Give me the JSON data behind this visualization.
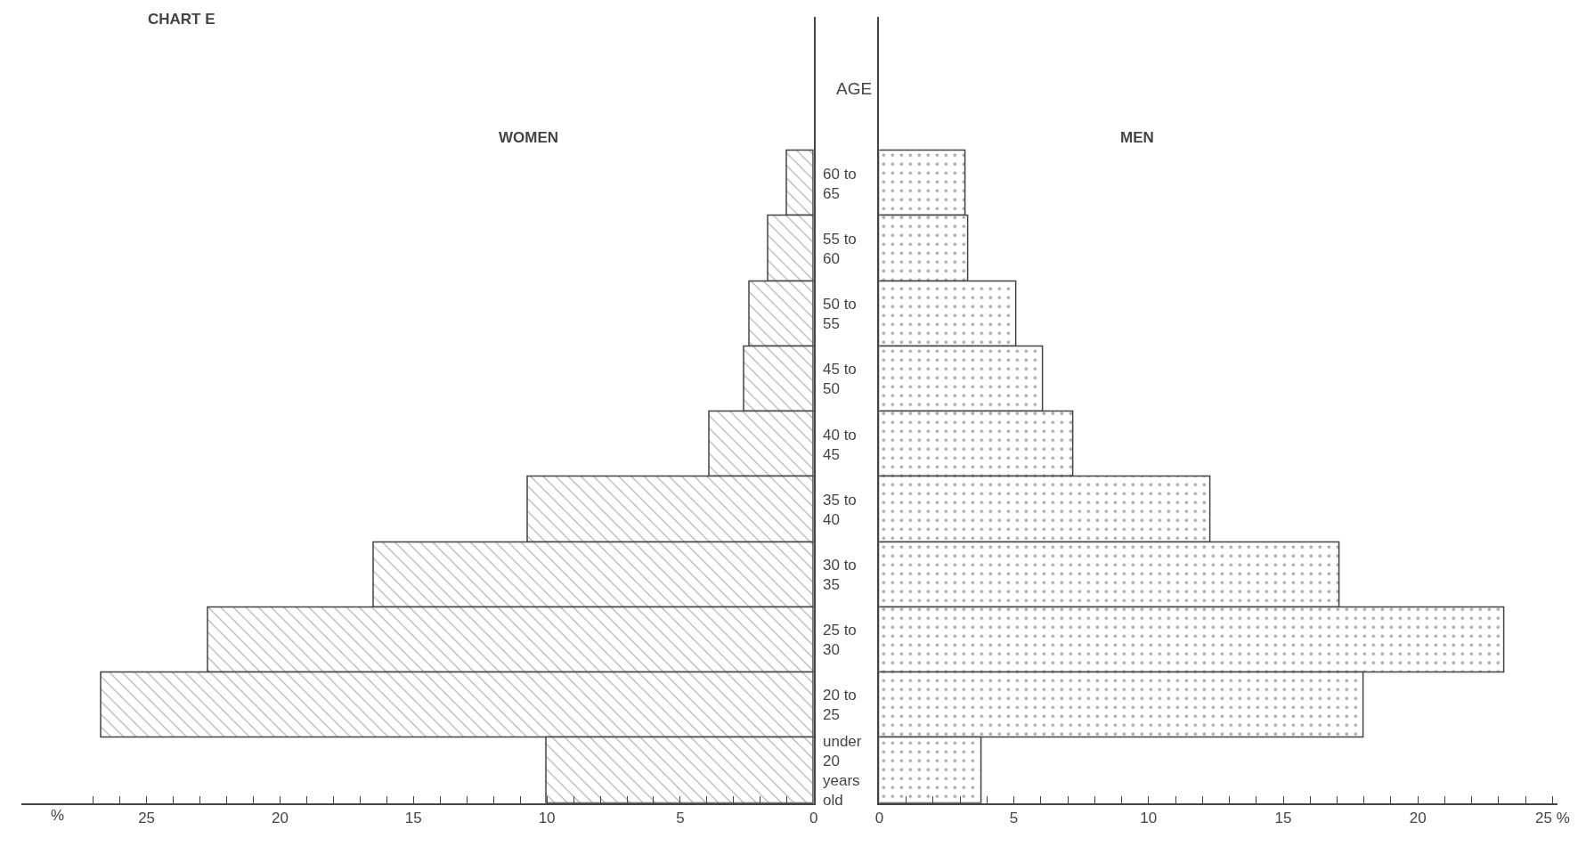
{
  "chart_data": [
    {
      "type": "bar",
      "orientation": "horizontal",
      "title": "CHART E",
      "subtitle": "WOMEN",
      "xlabel": "%",
      "tick_labels": "x",
      "categories": [
        null,
        null,
        null,
        null,
        null,
        null,
        null,
        null,
        null,
        null
      ],
      "series": [
        {
          "color": "#444444",
          "values": [
            1.0,
            1.7,
            2.4,
            2.6,
            3.9,
            10.7,
            16.5,
            22.7,
            26.7,
            10.0
          ]
        }
      ],
      "xlim": [
        29.7,
        0
      ],
      "xticks": [
        0,
        {
          "value": 1,
          "label": null
        },
        {
          "value": 2,
          "label": null
        },
        {
          "value": 3,
          "label": null
        },
        {
          "value": 4,
          "label": null
        },
        5,
        {
          "value": 6,
          "label": null
        },
        {
          "value": 7,
          "label": null
        },
        {
          "value": 8,
          "label": null
        },
        {
          "value": 9,
          "label": null
        },
        10,
        {
          "value": 11,
          "label": null
        },
        {
          "value": 12,
          "label": null
        },
        {
          "value": 13,
          "label": null
        },
        {
          "value": 14,
          "label": null
        },
        15,
        {
          "value": 16,
          "label": null
        },
        {
          "value": 17,
          "label": null
        },
        {
          "value": 18,
          "label": null
        },
        {
          "value": 19,
          "label": null
        },
        20,
        {
          "value": 21,
          "label": null
        },
        {
          "value": 22,
          "label": null
        },
        {
          "value": 23,
          "label": null
        },
        {
          "value": 24,
          "label": null
        },
        25,
        {
          "value": 26,
          "label": null
        },
        {
          "value": 27,
          "label": null
        }
      ]
    },
    {
      "type": "bar",
      "orientation": "horizontal",
      "subtitle": "MEN",
      "ylabel": "AGE",
      "categories": [
        "60 to\n65",
        "55 to\n60",
        "50 to\n55",
        "45 to\n50",
        "40 to\n45",
        "35 to\n40",
        "30 to\n35",
        "25 to\n30",
        "20 to\n25",
        "under\n20\nyears\nold"
      ],
      "series": [
        {
          "color": "#444444",
          "values": [
            3.2,
            3.3,
            5.1,
            6.1,
            7.2,
            12.3,
            17.1,
            23.2,
            18.0,
            3.8
          ]
        }
      ],
      "xlim": [
        0,
        25.2
      ],
      "xticks": [
        0,
        {
          "value": 1,
          "label": null
        },
        {
          "value": 2,
          "label": null
        },
        {
          "value": 3,
          "label": null
        },
        {
          "value": 4,
          "label": null
        },
        5,
        {
          "value": 6,
          "label": null
        },
        {
          "value": 7,
          "label": null
        },
        {
          "value": 8,
          "label": null
        },
        {
          "value": 9,
          "label": null
        },
        10,
        {
          "value": 11,
          "label": null
        },
        {
          "value": 12,
          "label": null
        },
        {
          "value": 13,
          "label": null
        },
        {
          "value": 14,
          "label": null
        },
        15,
        {
          "value": 16,
          "label": null
        },
        {
          "value": 17,
          "label": null
        },
        {
          "value": 18,
          "label": null
        },
        {
          "value": 19,
          "label": null
        },
        20,
        {
          "value": 21,
          "label": null
        },
        {
          "value": 22,
          "label": null
        },
        {
          "value": 23,
          "label": null
        },
        {
          "value": 24,
          "label": null
        },
        {
          "value": 25,
          "label": "25 %"
        }
      ]
    }
  ]
}
